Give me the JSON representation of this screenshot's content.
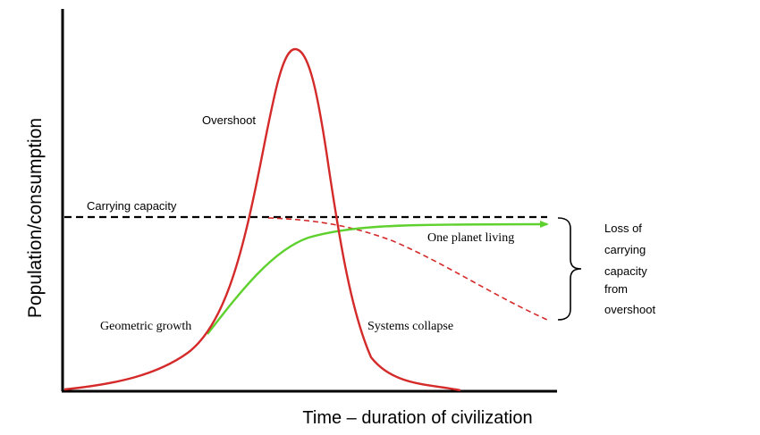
{
  "axes": {
    "y_label": "Population/consumption",
    "x_label": "Time – duration of civilization"
  },
  "labels": {
    "overshoot": "Overshoot",
    "carrying_capacity": "Carrying capacity",
    "one_planet_living": "One planet living",
    "geometric_growth": "Geometric growth",
    "systems_collapse": "Systems collapse",
    "loss_line1": "Loss of",
    "loss_line2": "carrying",
    "loss_line3": "capacity",
    "loss_line4": "from",
    "loss_line5": "overshoot"
  },
  "colors": {
    "overshoot_curve": "#d42a2a",
    "sustainable_curve": "#5fd12e",
    "carrying_capacity_line": "#000000",
    "axis": "#000000"
  }
}
